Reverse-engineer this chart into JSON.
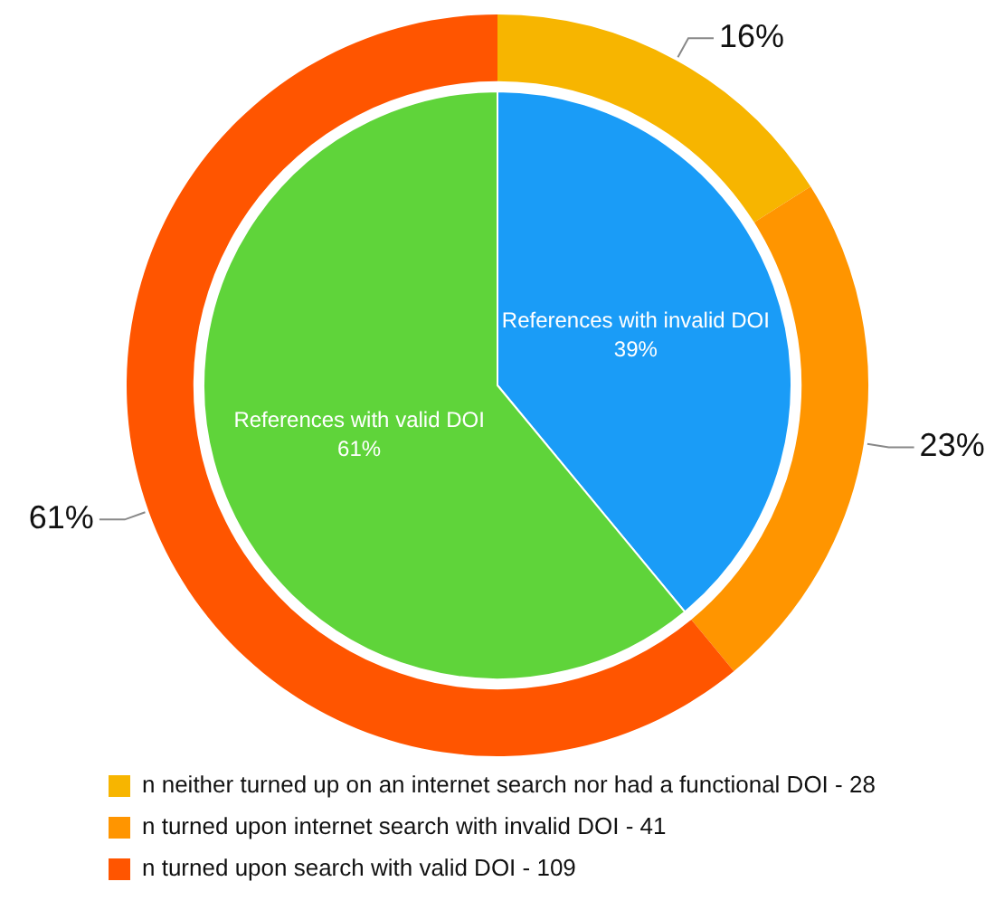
{
  "chart_data": [
    {
      "type": "donut",
      "categories": [
        "n neither turned up on an internet search nor had a functional DOI - 28",
        "n turned upon internet search with invalid DOI - 41",
        "n turned upon search with valid DOI - 109"
      ],
      "values": [
        16,
        23,
        61
      ],
      "colors": [
        "#f7b500",
        "#ff9500",
        "#ff5500"
      ],
      "value_labels": [
        "16%",
        "23%",
        "61%"
      ],
      "legend": "bottom"
    },
    {
      "type": "pie",
      "categories": [
        "References with invalid DOI",
        "References with valid DOI"
      ],
      "values": [
        39,
        61
      ],
      "colors": [
        "#1a9cf7",
        "#5fd43a"
      ],
      "value_labels": [
        "39%",
        "61%"
      ]
    }
  ]
}
